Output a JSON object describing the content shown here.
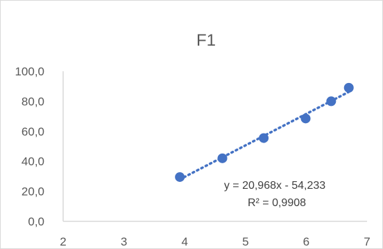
{
  "chart_data": {
    "type": "scatter",
    "title": "F1",
    "xlabel": "",
    "ylabel": "",
    "xlim": [
      2,
      7
    ],
    "ylim": [
      0,
      100
    ],
    "x_ticks": [
      "2",
      "3",
      "4",
      "5",
      "6",
      "7"
    ],
    "y_ticks": [
      "0,0",
      "20,0",
      "40,0",
      "60,0",
      "80,0",
      "100,0"
    ],
    "points": [
      {
        "x": 3.92,
        "y": 29.5
      },
      {
        "x": 4.62,
        "y": 42.0
      },
      {
        "x": 5.3,
        "y": 55.5
      },
      {
        "x": 5.99,
        "y": 68.5
      },
      {
        "x": 6.41,
        "y": 80.0
      },
      {
        "x": 6.7,
        "y": 89.0
      }
    ],
    "trendline": {
      "type": "linear",
      "slope": 20.968,
      "intercept": -54.233,
      "equation": "y = 20,968x - 54,233",
      "r_squared": "R² = 0,9908"
    },
    "grid": false,
    "legend": "none",
    "colors": {
      "marker": "#4472c4",
      "trendline": "#4472c4",
      "axis": "#d9d9d9",
      "text": "#595959"
    }
  }
}
